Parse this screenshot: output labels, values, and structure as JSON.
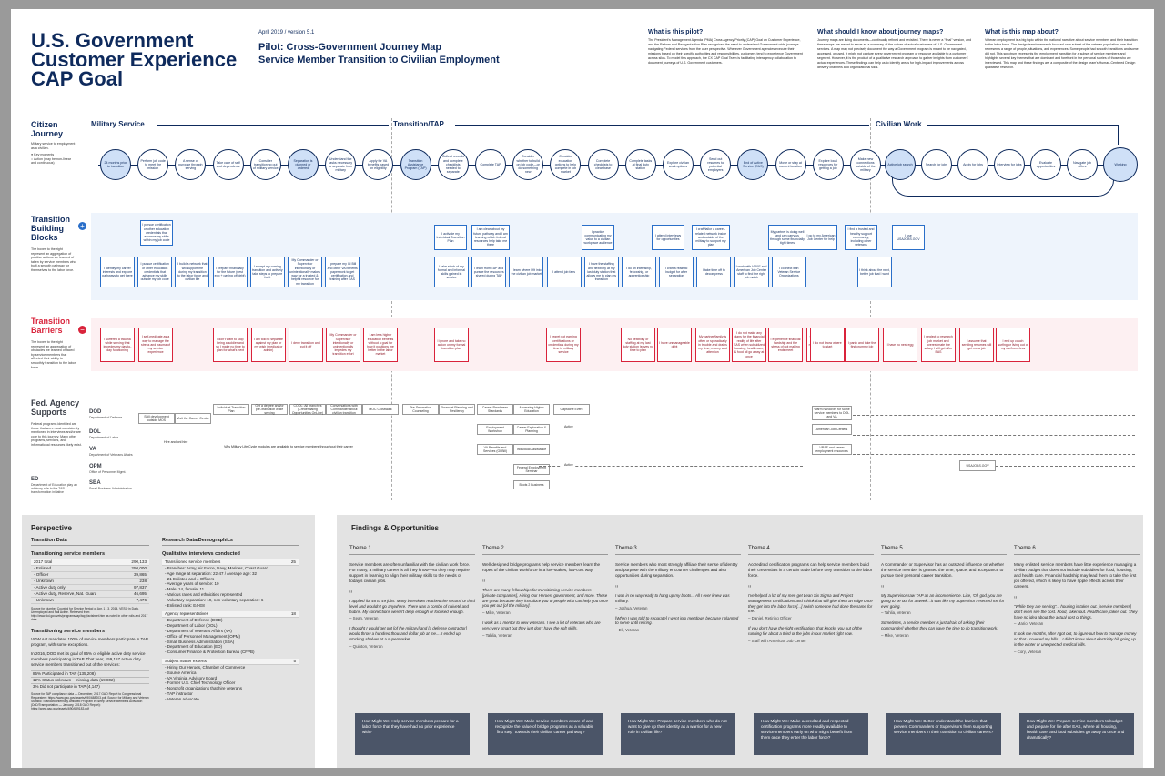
{
  "header": {
    "title": "U.S. Government Customer Experience CAP Goal",
    "version": "April 2019 / version 5.1",
    "subtitle1": "Pilot: Cross-Government Journey Map",
    "subtitle2": "Service Member Transition to Civilian Employment"
  },
  "info": [
    {
      "title": "What is this pilot?",
      "text": "The President's Management Agenda (PMA) Cross Agency Priority (CAP) Goal on Customer Experience, and the Reform and Reorganization Plan recognized the need to understand Government-wide journeys navigating Federal services from the user perspective. Wherever Government agencies execute their missions based on their specific authorities and responsibilities, customers tend to experience Government across silos. To model this approach, the CX CAP Goal Team is facilitating interagency collaboration to document journeys of U.S. Government customers."
    },
    {
      "title": "What should I know about journey maps?",
      "text": "Journey maps are living documents—continually refined and revisited. There is never a \"final\" version, and these maps are meant to serve as a summary of the voices of actual customers of U.S. Government services. A map may not precisely document the way a Government program is meant to be navigated, accessed, or used. It might not capture every government program or resource available to a customer segment. However, it is the product of a qualitative research approach to gather insights from customers' actual experiences. These findings can help us to identify areas for high-impact improvements across delivery channels and organizational silos."
    },
    {
      "title": "What is this map about?",
      "text": "Veteran employment is a big topic within the national narrative about service members and their transition to the labor force. The design team's research focused on a subset of the veteran population, one that represents a range of people, situations, and experiences. Some people had smooth transitions and some did not. This spectrum represents the employment transition for a subset of service members and highlights several key themes that are dominant and forefront in the personal stories of those who we interviewed. This map and these findings are a composite of the design team's Human-Centered Design qualitative research."
    }
  ],
  "rows": {
    "citizen": {
      "label": "Citizen Journey",
      "desc": "Military service to employment as a civilian.",
      "key1": "Key moments",
      "key2": "Action (may be non-linear and continuous)"
    },
    "blocks": {
      "label": "Transition Building Blocks",
      "desc": "The boxes to the right represent an aggregation of positive actions we learned of taken by service members who built a smooth pathway for themselves to the labor force."
    },
    "barriers": {
      "label": "Transition Barriers",
      "desc": "The boxes to the right represent an aggregation of obstacles we learned of faced by service members that affected their ability to smoothly transition to the labor force."
    },
    "fed": {
      "label": "Fed. Agency Supports",
      "desc": "Federal programs identified are those that were most consistently mentioned in interviews and/or are core to this journey. Many other programs, services, and informational resources likely exist."
    }
  },
  "phases": {
    "military": "Military Service",
    "transition": "Transition/TAP",
    "civilian": "Civilian Work"
  },
  "journey": [
    "24 months prior to transition",
    "Perform job code to meet the mission",
    "A sense of purpose through serving",
    "Take care of self and dependents",
    "Consider transitioning out of military service",
    "Separation is planned or ordered",
    "Understand the tasks necessary to separate from military",
    "Apply for VA benefits based on eligibility",
    "Transition Assistance Program (TAP)",
    "Collect records and complete checklists needed to separate",
    "Complete TAP",
    "Consider whether to build on job code—or do something new",
    "Consider education options to help compete in job market",
    "Complete checklists to clear base",
    "Complete tasks at final duty station",
    "Explore civilian work options",
    "Send out resumes to potential employers",
    "End of Active Service (EAS)",
    "Move or stay at current location",
    "Explore local resources for getting a job",
    "Make new connections outside of the military",
    "Active job search",
    "Search for jobs",
    "Apply for jobs",
    "Interview for jobs",
    "Evaluate opportunities",
    "Navigate job offers",
    "Working"
  ],
  "blocks_top": [
    "I pursue certification or other education credentials that advance my skills within my job code",
    "I activate my Individual Transition Plan",
    "I am clear about my future pathway and I am learning which federal resources help take me there",
    "I practice communicating my value to a civilian workplace audience",
    "I attend interviews for opportunities",
    "I craft/tailor a career-related network inside and outside of the military to support my plan",
    "My partner is doing well and can carry us through some financially tight times",
    "I go to my American Job Center for help",
    "I find a trusted and healthy support community, including other veterans",
    "I use USAJOBS.GOV"
  ],
  "blocks_bottom": [
    "I identify my career interests and explore pathways to get there",
    "I pursue certification or other education credentials that advance my skills outside my job code",
    "I build a network that will support me during my transition to the labor force and civilian life",
    "I prepare financially for the future (nest egg + paying off debt)",
    "I accept my coming transition and actively take steps to prepare for it",
    "My Commander or Supervisor intentionally or unintentionally makes way for a trusted & helpful resource for my transition",
    "I prepare my GI Bill and other VA benefits paperwork to get certification and training after EAS",
    "I take stock of my formal and informal skills gained in service",
    "I learn from TAP and pursue the resources shared during TAP",
    "I learn where I fit into the civilian job market",
    "I attend job fairs",
    "I have the staffing and flexibility at my last duty station that allows me to plan my transition",
    "I do an internship, fellowship, or apprenticeship",
    "I craft a realistic budget for after separation",
    "I take time off to decompress",
    "I work with VR&E and American Job Center staff to find the right job match",
    "I connect with Veteran Service Organizations",
    "I find networks linked to my civilian career interest",
    "I use LinkedIn.com, Monster.com Indeed.com",
    "I apply for a job, apprenticeship, fellowship, or internship",
    "I attend job interviews",
    "I turn down job offers that don't fit my career interests or financial needs",
    "I take a job to pay bills while earning education credentials that will help put me on my preferred career pathway",
    "I think about the next, better job that I want"
  ],
  "barriers": [
    "I suffered a trauma while serving that impedes my day-to-day functioning",
    "I self-medicate as a way to manage the stress and trauma of my service experience",
    "I don't want to stop being a soldier and so I make no time to plan for what's next",
    "I am told to separate against my plan or my wish (medical or admin)",
    "I deny transition and put it off",
    "My Commander or Supervisor intentionally or unintentionally impedes my transition effort",
    "I am less higher education benefits without a goal for how it positions me better in the labor market",
    "I ignore and take no action on my formal transition plan",
    "I regret not earning certifications or credentials during my time in military service",
    "No flexibility or staffing at my last duty station leaves no time to plan",
    "I have unmanageable debt",
    "My partner/family is often or sporadically in trouble and drains my time, money and attention",
    "I do not make any plans for the financial reality of life after EAS when subsidized housing, health care, & food all go away at once",
    "I experience financial hardship and the stress of not making ends meet",
    "Out of pride, I make decisions that keep me from taking a job, either then a long-term disposition",
    "I do not know where to start",
    "I panic and take the first crummy job",
    "I have no nest egg",
    "I neglect to research job market and overestimate the salary I will get after EAS",
    "I assume that sending resumes will get me a job",
    "I end up couch surfing or living out of my car/homeless"
  ],
  "agencies": {
    "dod": {
      "code": "DOD",
      "name": "Department of Defense"
    },
    "dol": {
      "code": "DOL",
      "name": "Department of Labor"
    },
    "va": {
      "code": "VA",
      "name": "Department of Veterans Affairs"
    },
    "opm": {
      "code": "OPM",
      "name": "Office of Personnel Mgmt."
    },
    "ed": {
      "code": "ED",
      "name": "Department of Education play an advisory role in the TAP transformation initiative"
    },
    "sba": {
      "code": "SBA",
      "name": "Small Business Administration"
    }
  },
  "programs": [
    "Skill development outside MOS",
    "Visit the Career Center",
    "Individual Transition Plan",
    "Get a degree and/or pre-/transition while serving",
    "COOL: All branches (Credentialing Opportunities OnLine)",
    "Conversations with Commander about civilian transition",
    "MOC Crosswalk",
    "Pre-Separation Counseling",
    "Financial Planning and Resiliency",
    "Career Readiness Standards",
    "Accessing Higher Education",
    "Capstone Event",
    "Employment Workshop",
    "Career Exploration & Planning",
    "VA Benefits and Services (GI Bill)",
    "Individual Assistance",
    "Federal Employment Seminar",
    "Boots 2 Business",
    "Warm handover for some service members to DOL and VA",
    "American Job Centers",
    "VR&E and career employment resources",
    "USAJOBS.GOV"
  ],
  "program_notes": {
    "hire": "Hire and onl hire",
    "ymm": "VA's Military Life Cycle modules are available to service members throughout their career",
    "active1": "Active",
    "active2": "Active"
  },
  "perspective": {
    "heading": "Perspective",
    "transition_data": "Transition Data",
    "tsm_label": "Transitioning service members",
    "tsm_rows": [
      [
        "2017 total",
        "290,133"
      ],
      [
        "- Enlisted",
        "250,000"
      ],
      [
        "- Officer",
        "39,865"
      ],
      [
        "- Unknown",
        "238"
      ],
      [
        "- Active duty only",
        "97,837"
      ],
      [
        "- Active duty, Reserve, Nat. Guard",
        "46,695"
      ],
      [
        "- Unknown",
        "7,476"
      ]
    ],
    "tsm_source": "Source for Number Counted for Service Period of Apr. 1 - 3, 2014. VESO in Data, Unemployed and Fall Active. Retrieved from http://www.dol.gov/vets/programs/tap/tap_factsheet.htm as noted in other rolls and 2017 data.",
    "tap_label": "Transitioning service members",
    "tap_text1": "VOW Act mandates 100% of service members participate in TAP program, with some exceptions.",
    "tap_text2": "In 2016, DOD met its goal of 85% of eligible active duty service members participating in TAP. That year, 159,157 active duty service members transitioned out of the services:",
    "tap_items": [
      "85% Participated in TAP (135,208)",
      "12% Status unknown—missing data (19,802)",
      "3% Did not participate in TAP (4,147)"
    ],
    "tap_source": "Source for TAP compliance data — December, 2017 GAO Report to Congressional Requesters: https://www.gao.gov/assets/690/688203.pdf. Source for Military and Veteran Statistic: Standard Internally Affiliated Program in Sleep Service Members Activation (DoD/Transportation — January, 2018 GAO Report): https://www.gao.gov/assets/690/689183.pdf",
    "research": "Research Data/Demographics",
    "qual": "Qualitative interviews conducted",
    "tsm2": "Transitioned service members",
    "tsm2_count": "25",
    "tsm2_items": [
      "- Branches: Army, Air Force, Navy, Marines, Coast Guard",
      "- Age range at separation: 22-47 / Average age: 32",
      "- 21 Enlisted and 4 Officers",
      "- Average years of service: 10",
      "- Male: 14, female: 11",
      "- Various races and ethnicities represented",
      "- Voluntary separation: 19, non-voluntary separation: 6",
      "- Enlisted rank: E4-E8"
    ],
    "reps": "Agency representatives",
    "reps_count": "18",
    "reps_items": [
      "- Department of Defense (DOD)",
      "- Department of Labor (DOL)",
      "- Department of Veterans Affairs (VA)",
      "- Office of Personnel Management (OPM)",
      "- Small Business Administration (SBA)",
      "- Department of Education (ED)",
      "- Consumer Finance & Protection Bureau (CFPB)"
    ],
    "sme": "Subject matter experts",
    "sme_count": "5",
    "sme_items": [
      "- Hiring Our Heroes, Chamber of Commerce",
      "- Source America",
      "- VA Virginia, Advisory Board",
      "- Former U.S. Chief Technology Officer",
      "- Nonprofit organizations that hire veterans",
      "- TAP instructor",
      "- Veteran advocate"
    ]
  },
  "findings": {
    "heading": "Findings & Opportunities",
    "themes": [
      {
        "name": "Theme 1",
        "body": "Service members are often unfamiliar with the civilian work force. For many, a military career is all they know—so they may require support in learning to align their military skills to the needs of today's civilian jobs.",
        "q1": "I applied for 48 to 49 jobs. Many interviews reached the second or third level and wouldn't go anywhere. There was a combo of naiveté and hubris. My connections weren't deep enough or focused enough.",
        "s1": "– Sean, Veteran",
        "q2": "I thought I would get out [of the military] and [a defense contractor] would throw a hundred thousand dollar job at me.... I ended up stocking shelves at a supermarket.",
        "s2": "– Quinton, Veteran",
        "hmw": "How Might We: Help service members prepare for a labor force that they have had no prior experience with?"
      },
      {
        "name": "Theme 2",
        "body": "Well-designed bridge programs help service members learn the ropes of the civilian workforce in a low-stakes, low-cost way.",
        "q1": "There are many fellowships for transitioning service members — [private companies], Hiring Our Heroes, government, and more. These are great because they introduce you to people who can help you once you get out [of the military].",
        "s1": "– Mike, Veteran",
        "q2": "I work as a mentor to new veterans. I see a lot of veterans who are very, very smart but they just don't have the soft skills.",
        "s2": "– Tahlia, Veteran",
        "hmw": "How Might We: Make service members aware of and recognize the value of bridge programs as a valuable \"first step\" towards their civilian career pathway?"
      },
      {
        "name": "Theme 3",
        "body": "Service members who most strongly affiliate their sense of identity and purpose with the military encounter challenges and also opportunities during separation.",
        "q1": "I was in no way ready to hang up my boots... All I ever knew was military.",
        "s1": "– Joshua, Veteran",
        "q2": "[When I was told to separate] I went into meltdown because I planned to serve until retiring.",
        "s2": "– Eli, Veteran",
        "hmw": "How Might We: Prepare service members who do not want to give up their identity as a warrior for a new role in civilian life?"
      },
      {
        "name": "Theme 4",
        "body": "Accredited certification programs can help service members build their credentials in a certain trade before they transition to the labor force.",
        "q1": "I've helped a lot of my men get Lean Six Sigma and Project Management certifications and I think that will give them an edge once they get into the labor force[...] I wish someone had done the same for me.",
        "s1": "– Daniel, Retiring Officer",
        "q2": "If you don't have the right certification, that knocks you out of the running for about a third of the jobs in our market right now.",
        "s2": "– Staff with American Job Center",
        "hmw": "How Might We: Make accredited and respected certification programs more readily available to service members early on who might benefit from them once they enter the labor force?"
      },
      {
        "name": "Theme 5",
        "body": "A Commander or Supervisor has an outsized influence on whether the service member is granted the time, space, and acceptance to pursue their personal career transition.",
        "q1": "My Supervisor saw TAP as an inconvenience. Like, 'Oh god, you are going to be out for a week'...it was like my Supervisor resented me for ever going.",
        "s1": "– Tahlia, Veteran",
        "q2": "Sometimes, a service member is just afraid of asking [their commander] whether they can have the time to do transition work.",
        "s2": "– Mike, Veteran",
        "hmw": "How Might We: Better understand the barriers that prevent Commanders or Supervisors from supporting service members in their transition to civilian careers?"
      },
      {
        "name": "Theme 6",
        "body": "Many enlisted service members have little experience managing a civilian budget that does not include subsidies for food, housing, and health care. Financial hardship may lead them to take the first job offered, which is likely to have ripple effects across their careers.",
        "q1": "\"While they are serving\"... housing is taken out. [service members] don't even see the cost. Food, taken out. Health care, taken out. They have no idea about the actual cost of things.",
        "s1": "– Mario, Veteran",
        "q2": "It took me months, after I got out, to figure out how to manage money so that I covered my bills... I didn't know about electricity bill going up in the winter or unexpected medical bills.",
        "s2": "– Cory, Veteran",
        "hmw": "How Might We: Prepare service members to budget and prepare for life after EAS, where all housing, health care, and food subsidies go away at once and dramatically?"
      }
    ]
  }
}
